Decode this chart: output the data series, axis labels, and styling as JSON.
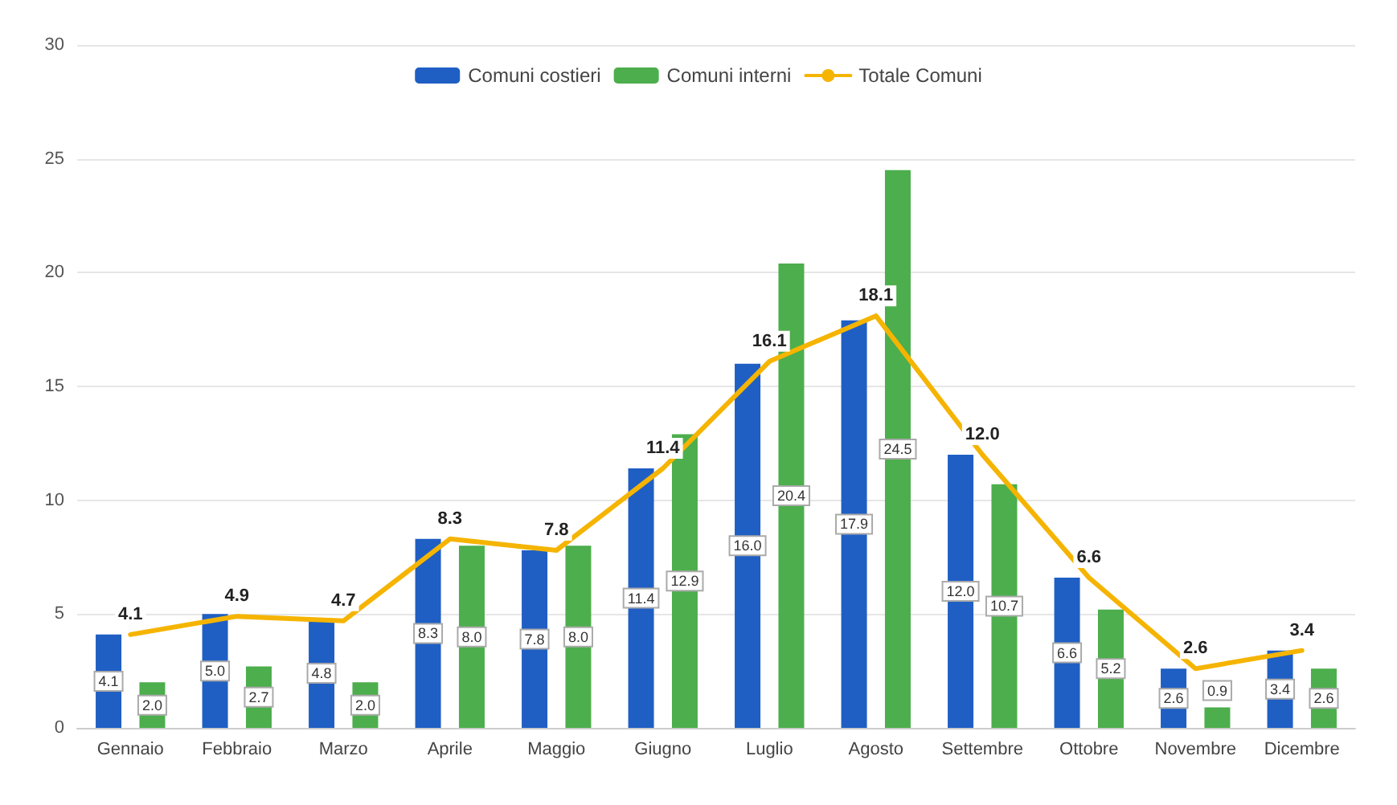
{
  "chart_data": {
    "type": "bar",
    "categories": [
      "Gennaio",
      "Febbraio",
      "Marzo",
      "Aprile",
      "Maggio",
      "Giugno",
      "Luglio",
      "Agosto",
      "Settembre",
      "Ottobre",
      "Novembre",
      "Dicembre"
    ],
    "series": [
      {
        "name": "Comuni costieri",
        "color": "#1f5fc4",
        "values": [
          4.1,
          5.0,
          4.8,
          8.3,
          7.8,
          11.4,
          16.0,
          17.9,
          12.0,
          6.6,
          2.6,
          3.4
        ],
        "value_labels": [
          "4.1",
          "5.0",
          "4.8",
          "8.3",
          "7.8",
          "11.4",
          "16.0",
          "17.9",
          "12.0",
          "6.6",
          "2.6",
          "3.4"
        ]
      },
      {
        "name": "Comuni interni",
        "color": "#4cae4c",
        "values": [
          2.0,
          2.7,
          2.0,
          8.0,
          8.0,
          12.9,
          20.4,
          24.5,
          10.7,
          5.2,
          0.9,
          2.6
        ],
        "value_labels": [
          "2.0",
          "2.7",
          "2.0",
          "8.0",
          "8.0",
          "12.9",
          "20.4",
          "24.5",
          "10.7",
          "5.2",
          "0.9",
          "2.6"
        ]
      },
      {
        "name": "Totale Comuni",
        "type": "line",
        "color": "#f5b400",
        "values": [
          4.1,
          4.9,
          4.7,
          8.3,
          7.8,
          11.4,
          16.1,
          18.1,
          12.0,
          6.6,
          2.6,
          3.4
        ],
        "value_labels": [
          "4.1",
          "4.9",
          "4.7",
          "8.3",
          "7.8",
          "11.4",
          "16.1",
          "18.1",
          "12.0",
          "6.6",
          "2.6",
          "3.4"
        ]
      }
    ],
    "ylim": [
      0,
      30
    ],
    "yticks": [
      0,
      5,
      10,
      15,
      20,
      25,
      30
    ],
    "grid": "y",
    "legend": "top",
    "marker": "none",
    "line_style": "solid"
  }
}
